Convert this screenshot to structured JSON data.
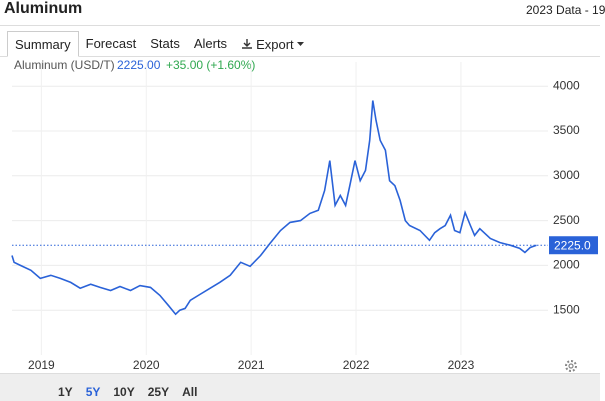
{
  "header": {
    "title": "Aluminum",
    "info": "2023 Data - 19"
  },
  "tabs": [
    "Summary",
    "Forecast",
    "Stats",
    "Alerts",
    "Export"
  ],
  "ranges": [
    "1Y",
    "5Y",
    "10Y",
    "25Y",
    "All"
  ],
  "chart_data": {
    "type": "line",
    "series": [
      {
        "name": "Aluminum (USD/T)",
        "color": "#2a62d8",
        "x": [
          2018.72,
          2018.74,
          2018.8,
          2018.9,
          2018.99,
          2019.09,
          2019.18,
          2019.28,
          2019.37,
          2019.47,
          2019.56,
          2019.66,
          2019.75,
          2019.85,
          2019.94,
          2020.04,
          2020.13,
          2020.21,
          2020.28,
          2020.32,
          2020.37,
          2020.42,
          2020.51,
          2020.61,
          2020.7,
          2020.8,
          2020.9,
          2020.99,
          2021.09,
          2021.18,
          2021.28,
          2021.37,
          2021.47,
          2021.56,
          2021.64,
          2021.7,
          2021.75,
          2021.8,
          2021.85,
          2021.9,
          2021.94,
          2021.99,
          2022.04,
          2022.09,
          2022.13,
          2022.16,
          2022.19,
          2022.23,
          2022.28,
          2022.32,
          2022.37,
          2022.42,
          2022.47,
          2022.51,
          2022.61,
          2022.7,
          2022.75,
          2022.8,
          2022.85,
          2022.9,
          2022.94,
          2022.99,
          2023.04,
          2023.09,
          2023.13,
          2023.18,
          2023.28,
          2023.37,
          2023.47,
          2023.56,
          2023.61,
          2023.66,
          2023.72
        ],
        "values": [
          2110,
          2035,
          2000,
          1945,
          1855,
          1890,
          1855,
          1810,
          1745,
          1790,
          1755,
          1720,
          1765,
          1720,
          1775,
          1755,
          1665,
          1555,
          1455,
          1500,
          1520,
          1610,
          1675,
          1745,
          1810,
          1890,
          2035,
          1990,
          2110,
          2245,
          2390,
          2480,
          2500,
          2580,
          2615,
          2835,
          3170,
          2670,
          2780,
          2670,
          2890,
          3170,
          2945,
          3060,
          3395,
          3840,
          3620,
          3395,
          3285,
          2945,
          2890,
          2725,
          2500,
          2445,
          2390,
          2280,
          2365,
          2410,
          2445,
          2560,
          2390,
          2365,
          2590,
          2445,
          2335,
          2410,
          2300,
          2255,
          2225,
          2190,
          2145,
          2200,
          2225
        ]
      }
    ],
    "price_line": {
      "value": 2225,
      "label": "2225.0"
    },
    "legend_price": {
      "value": 2225,
      "label": "2225.00"
    },
    "legend_change": "+35.00 (+1.60%)",
    "xlim": [
      2018.72,
      2023.83
    ],
    "ylim": [
      1000,
      4270
    ],
    "xticks": [
      2019,
      2020,
      2021,
      2022,
      2023
    ],
    "yticks": [
      1500,
      2000,
      2500,
      3000,
      3500,
      4000
    ],
    "grid": true
  }
}
